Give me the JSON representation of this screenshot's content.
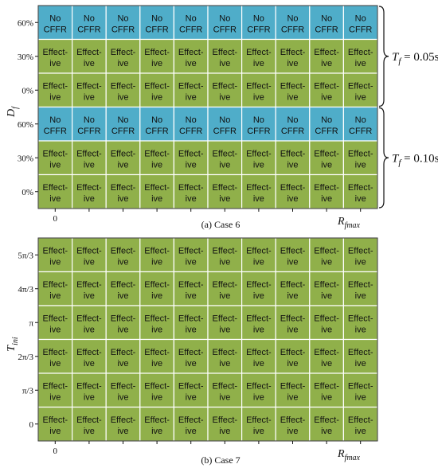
{
  "chart_data": [
    {
      "type": "heatmap",
      "caption": "(a) Case 6",
      "ylabel": "D",
      "ylabel_sub": "f",
      "xlabel": "R",
      "xlabel_sub": "fmax",
      "x_ticks": [
        "0"
      ],
      "groups": [
        {
          "label_prefix": "T",
          "label_sub": "f",
          "label_value": " = 0.05s",
          "rows": [
            {
              "tick": "60%",
              "status": "No CFFR"
            },
            {
              "tick": "30%",
              "status": "Effective"
            },
            {
              "tick": "0%",
              "status": "Effective"
            }
          ]
        },
        {
          "label_prefix": "T",
          "label_sub": "f",
          "label_value": " = 0.10s",
          "rows": [
            {
              "tick": "60%",
              "status": "No CFFR"
            },
            {
              "tick": "30%",
              "status": "Effective"
            },
            {
              "tick": "0%",
              "status": "Effective"
            }
          ]
        }
      ],
      "columns": 10
    },
    {
      "type": "heatmap",
      "caption": "(b) Case 7",
      "ylabel": "T",
      "ylabel_sub": "ini",
      "xlabel": "R",
      "xlabel_sub": "fmax",
      "x_ticks": [
        "0"
      ],
      "rows": [
        {
          "tick": "5π/3",
          "status": "Effective"
        },
        {
          "tick": "4π/3",
          "status": "Effective"
        },
        {
          "tick": "π",
          "status": "Effective"
        },
        {
          "tick": "2π/3",
          "status": "Effective"
        },
        {
          "tick": "π/3",
          "status": "Effective"
        },
        {
          "tick": "0",
          "status": "Effective"
        }
      ],
      "columns": 10
    }
  ],
  "legend_text": {
    "no_cffr_line1": "No",
    "no_cffr_line2": "CFFR",
    "effective_line1": "Effect-",
    "effective_line2": "ive"
  },
  "colors": {
    "no_cffr": "#4fadc9",
    "effective": "#90b04a",
    "grid": "#ffffff",
    "border": "#333333"
  }
}
